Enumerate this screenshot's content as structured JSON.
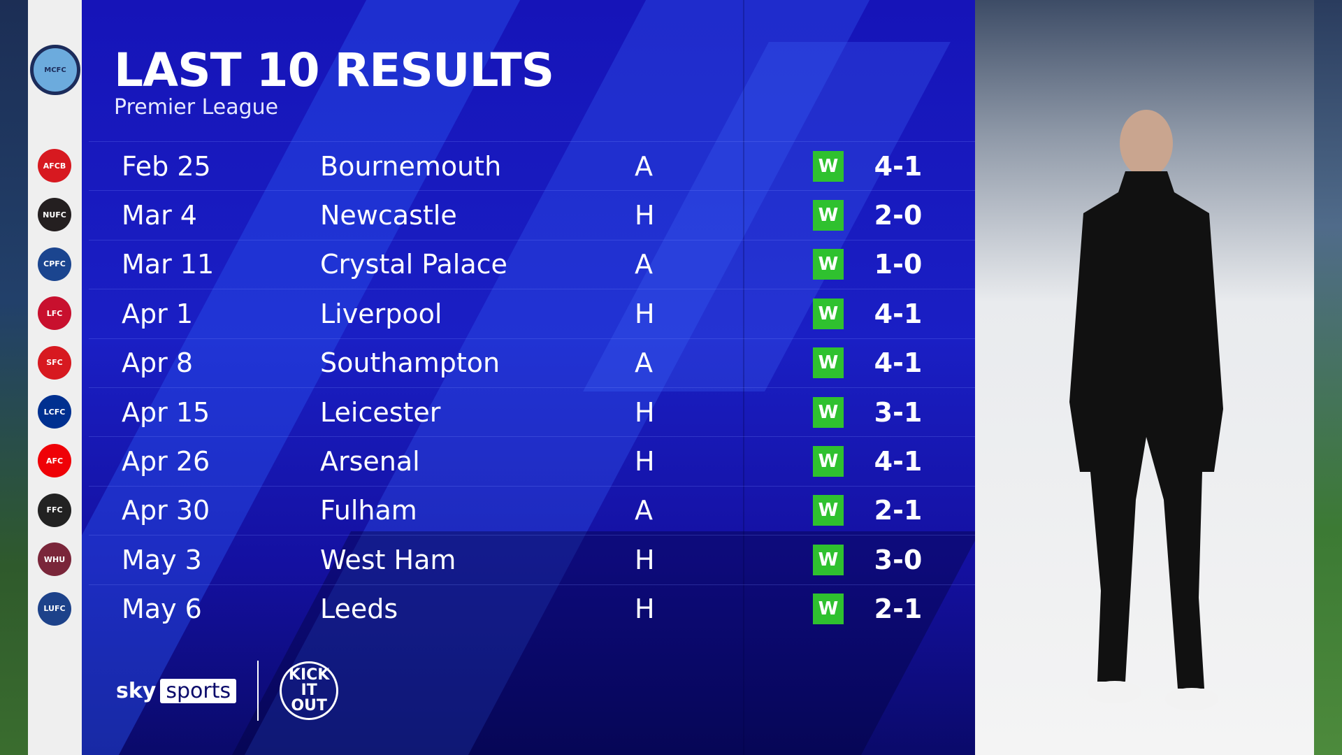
{
  "header": {
    "title": "LAST 10 RESULTS",
    "subtitle": "Premier League"
  },
  "team_badge": "MCFC",
  "colors": {
    "win": "#2fc12f",
    "panel": "#1614b8"
  },
  "results": [
    {
      "date": "Feb 25",
      "opponent": "Bournemouth",
      "venue": "A",
      "result": "W",
      "score": "4-1",
      "badge": "AFCB",
      "badge_color": "#d71920"
    },
    {
      "date": "Mar 4",
      "opponent": "Newcastle",
      "venue": "H",
      "result": "W",
      "score": "2-0",
      "badge": "NUFC",
      "badge_color": "#241f20"
    },
    {
      "date": "Mar 11",
      "opponent": "Crystal Palace",
      "venue": "A",
      "result": "W",
      "score": "1-0",
      "badge": "CPFC",
      "badge_color": "#1b458f"
    },
    {
      "date": "Apr 1",
      "opponent": "Liverpool",
      "venue": "H",
      "result": "W",
      "score": "4-1",
      "badge": "LFC",
      "badge_color": "#c8102e"
    },
    {
      "date": "Apr 8",
      "opponent": "Southampton",
      "venue": "A",
      "result": "W",
      "score": "4-1",
      "badge": "SFC",
      "badge_color": "#d71920"
    },
    {
      "date": "Apr 15",
      "opponent": "Leicester",
      "venue": "H",
      "result": "W",
      "score": "3-1",
      "badge": "LCFC",
      "badge_color": "#003090"
    },
    {
      "date": "Apr 26",
      "opponent": "Arsenal",
      "venue": "H",
      "result": "W",
      "score": "4-1",
      "badge": "AFC",
      "badge_color": "#ef0107"
    },
    {
      "date": "Apr 30",
      "opponent": "Fulham",
      "venue": "A",
      "result": "W",
      "score": "2-1",
      "badge": "FFC",
      "badge_color": "#222222"
    },
    {
      "date": "May 3",
      "opponent": "West Ham",
      "venue": "H",
      "result": "W",
      "score": "3-0",
      "badge": "WHU",
      "badge_color": "#7a263a"
    },
    {
      "date": "May 6",
      "opponent": "Leeds",
      "venue": "H",
      "result": "W",
      "score": "2-1",
      "badge": "LUFC",
      "badge_color": "#1d428a"
    }
  ],
  "footer": {
    "sky": "sky",
    "sports": "sports",
    "kick_it_out": "KICK IT OUT"
  }
}
